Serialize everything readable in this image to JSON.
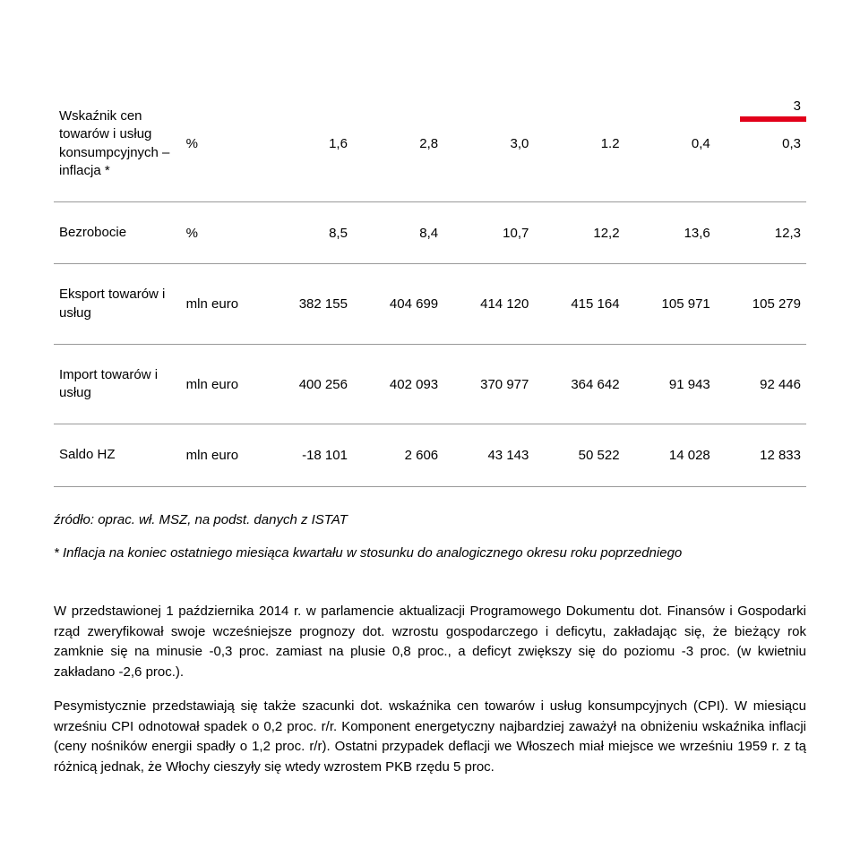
{
  "page_number": "3",
  "header_bar_color": "#e2001a",
  "table": {
    "border_color": "#999999",
    "rows": [
      {
        "label": "Wskaźnik cen towarów i usług konsumpcyjnych – inflacja *",
        "unit": "%",
        "values": [
          "1,6",
          "2,8",
          "3,0",
          "1.2",
          "0,4",
          "0,3"
        ]
      },
      {
        "label": "Bezrobocie",
        "unit": "%",
        "values": [
          "8,5",
          "8,4",
          "10,7",
          "12,2",
          "13,6",
          "12,3"
        ]
      },
      {
        "label": "Eksport towarów i usług",
        "unit": "mln euro",
        "values": [
          "382 155",
          "404 699",
          "414 120",
          "415 164",
          "105 971",
          "105 279"
        ]
      },
      {
        "label": "Import towarów i usług",
        "unit": "mln euro",
        "values": [
          "400 256",
          "402 093",
          "370 977",
          "364 642",
          "91 943",
          "92 446"
        ]
      },
      {
        "label": "Saldo HZ",
        "unit": "mln euro",
        "values": [
          "-18 101",
          "2 606",
          "43 143",
          "50 522",
          "14 028",
          "12 833"
        ]
      }
    ]
  },
  "source_line": "źródło: oprac. wł. MSZ, na podst. danych z ISTAT",
  "footnote": "* Inflacja na koniec ostatniego miesiąca kwartału w stosunku do analogicznego okresu roku poprzedniego",
  "paragraphs": [
    "W przedstawionej 1 października 2014 r. w parlamencie aktualizacji Programowego Dokumentu dot. Finansów i Gospodarki rząd zweryfikował swoje wcześniejsze prognozy dot. wzrostu gospodarczego i deficytu, zakładając się, że bieżący rok zamknie się na minusie -0,3 proc. zamiast na plusie 0,8 proc., a deficyt zwiększy się do poziomu -3 proc. (w kwietniu zakładano -2,6 proc.).",
    "Pesymistycznie przedstawiają się także szacunki dot. wskaźnika cen towarów i usług konsumpcyjnych (CPI). W miesiącu wrześniu CPI odnotował spadek o 0,2 proc. r/r. Komponent energetyczny najbardziej zaważył na obniżeniu wskaźnika inflacji (ceny nośników energii spadły o 1,2 proc. r/r). Ostatni przypadek deflacji we Włoszech miał miejsce we wrześniu 1959 r. z tą różnicą jednak, że Włochy cieszyły się wtedy wzrostem PKB rzędu 5 proc."
  ]
}
